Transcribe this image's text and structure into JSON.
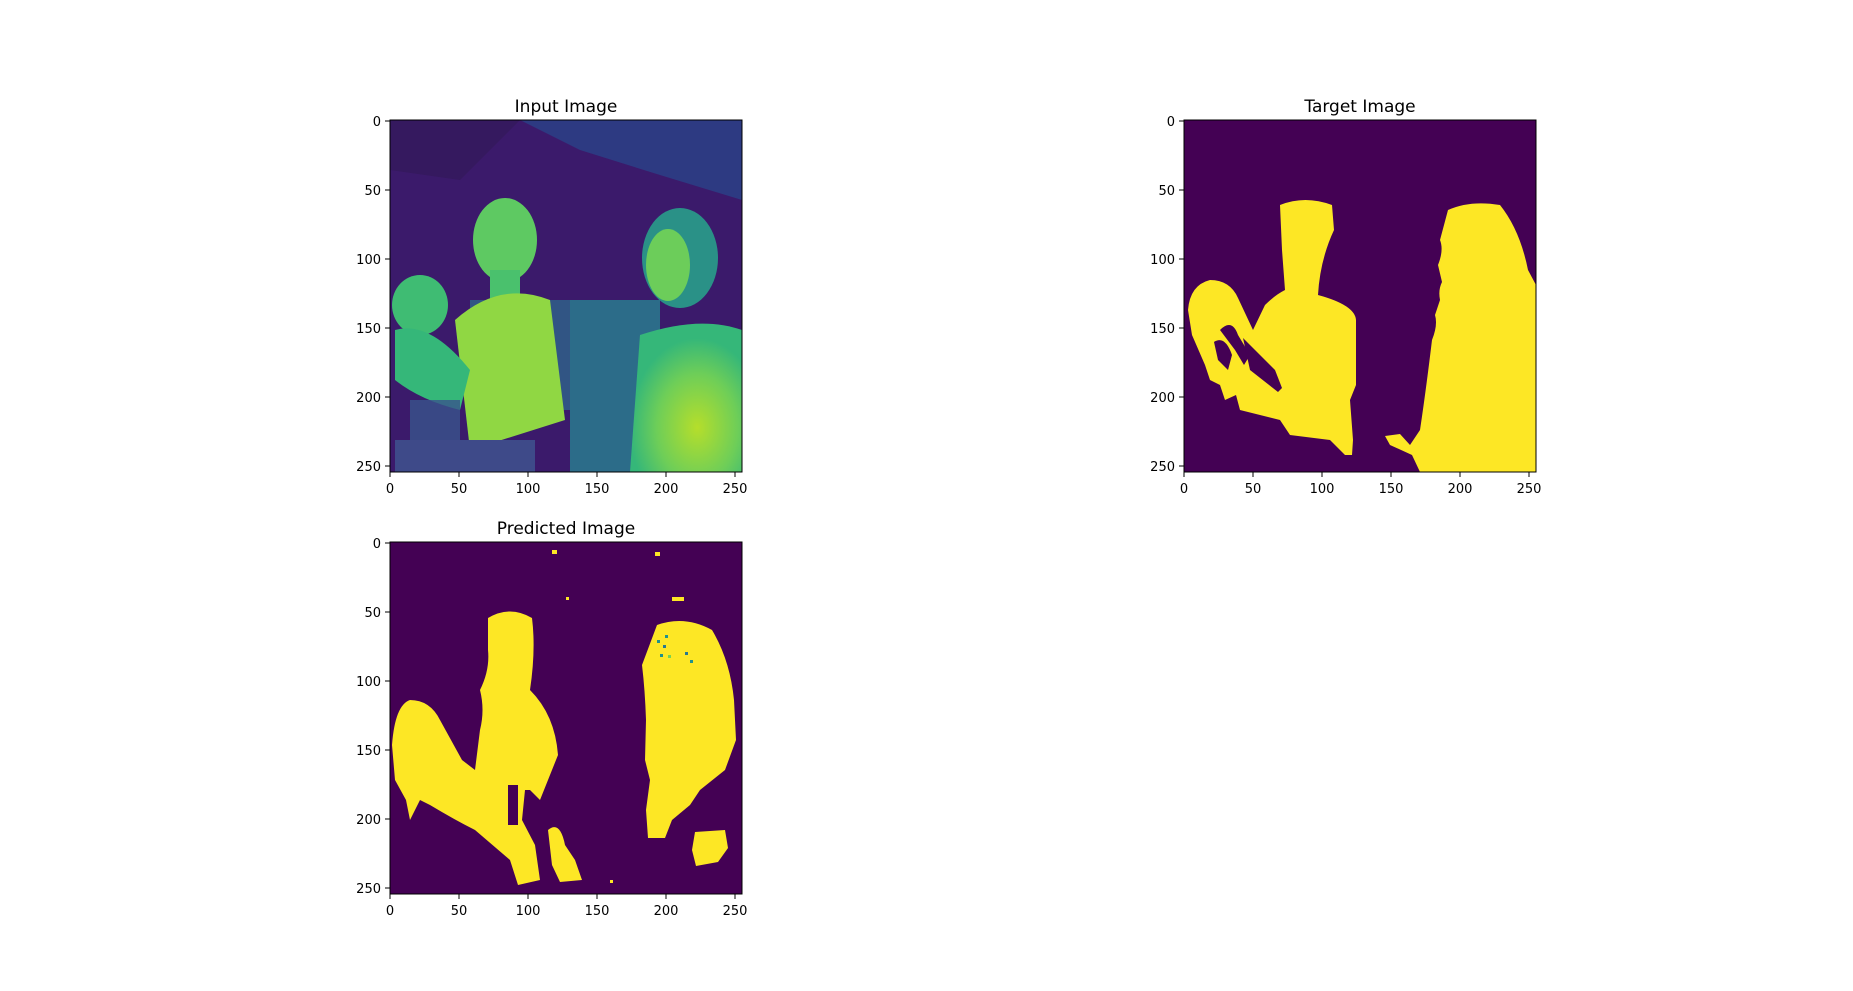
{
  "chart_data": [
    {
      "type": "image",
      "title": "Input Image",
      "x_ticks": [
        0,
        50,
        100,
        150,
        200,
        250
      ],
      "y_ticks": [
        0,
        50,
        100,
        150,
        200,
        250
      ],
      "xlim": [
        0,
        255
      ],
      "ylim": [
        255,
        0
      ],
      "colormap": "viridis",
      "content": "grayscale photo"
    },
    {
      "type": "image",
      "title": "Target Image",
      "x_ticks": [
        0,
        50,
        100,
        150,
        200,
        250
      ],
      "y_ticks": [
        0,
        50,
        100,
        150,
        200,
        250
      ],
      "xlim": [
        0,
        255
      ],
      "ylim": [
        255,
        0
      ],
      "colormap": "viridis",
      "content": "binary mask"
    },
    {
      "type": "image",
      "title": "Predicted Image",
      "x_ticks": [
        0,
        50,
        100,
        150,
        200,
        250
      ],
      "y_ticks": [
        0,
        50,
        100,
        150,
        200,
        250
      ],
      "xlim": [
        0,
        255
      ],
      "ylim": [
        255,
        0
      ],
      "colormap": "viridis",
      "content": "binary mask"
    }
  ],
  "colors": {
    "background": "#440154",
    "foreground": "#fde725",
    "mid": "#21918c",
    "teal": "#2a788e",
    "green": "#7ad151"
  }
}
